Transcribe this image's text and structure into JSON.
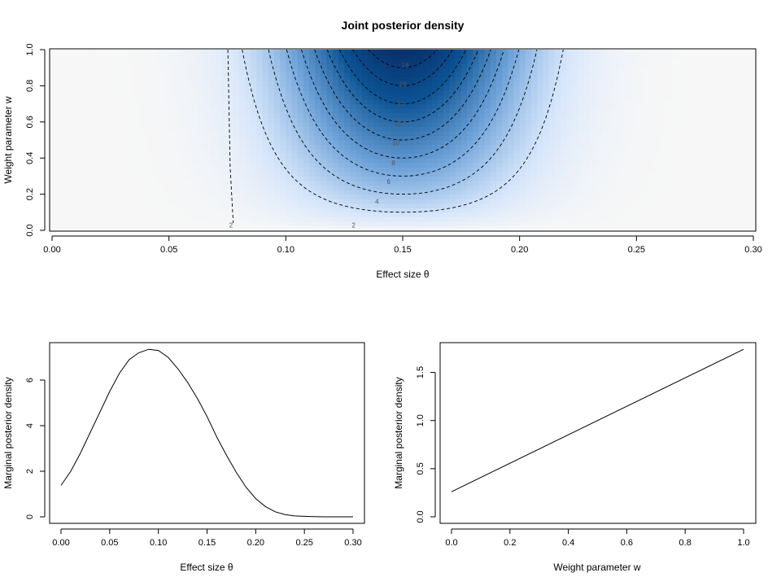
{
  "chart_data": [
    {
      "type": "heatmap",
      "title": "Joint posterior density",
      "xlabel": "Effect size θ",
      "ylabel": "Weight parameter w",
      "xlim": [
        0,
        0.3
      ],
      "ylim": [
        0,
        1
      ],
      "x_ticks": [
        "0.00",
        "0.05",
        "0.10",
        "0.15",
        "0.20",
        "0.25",
        "0.30"
      ],
      "y_ticks": [
        "0.0",
        "0.2",
        "0.4",
        "0.6",
        "0.8",
        "1.0"
      ],
      "colormap": [
        "#f7f7f7",
        "#d6e6fb",
        "#6fa3d9",
        "#0b5394",
        "#08306b"
      ],
      "contour_levels": [
        2,
        4,
        6,
        8,
        10,
        12,
        14,
        16,
        18
      ],
      "contour_labels": [
        {
          "text": "2",
          "x": 0.0765,
          "y": 0.03
        },
        {
          "text": "2",
          "x": 0.129,
          "y": 0.03
        },
        {
          "text": "4",
          "x": 0.139,
          "y": 0.16
        },
        {
          "text": "6",
          "x": 0.144,
          "y": 0.27
        },
        {
          "text": "8",
          "x": 0.146,
          "y": 0.375
        },
        {
          "text": "10",
          "x": 0.147,
          "y": 0.485
        },
        {
          "text": "12",
          "x": 0.148,
          "y": 0.59
        },
        {
          "text": "14",
          "x": 0.149,
          "y": 0.7
        },
        {
          "text": "16",
          "x": 0.15,
          "y": 0.81
        },
        {
          "text": "18",
          "x": 0.151,
          "y": 0.915
        }
      ],
      "density_model": {
        "mean": 0.15,
        "sd": 0.032,
        "scale": 20
      },
      "grid": false
    },
    {
      "type": "line",
      "title": "",
      "xlabel": "Effect size θ",
      "ylabel": "Marginal posterior density",
      "xlim": [
        0,
        0.3
      ],
      "ylim": [
        0,
        7.5
      ],
      "x_ticks": [
        "0.00",
        "0.05",
        "0.10",
        "0.15",
        "0.20",
        "0.25",
        "0.30"
      ],
      "y_ticks": [
        "0",
        "2",
        "4",
        "6"
      ],
      "series": [
        {
          "x": [
            0.0,
            0.01,
            0.02,
            0.03,
            0.04,
            0.05,
            0.06,
            0.07,
            0.08,
            0.09,
            0.1,
            0.11,
            0.12,
            0.13,
            0.14,
            0.15,
            0.16,
            0.17,
            0.18,
            0.19,
            0.2,
            0.21,
            0.22,
            0.23,
            0.24,
            0.25,
            0.26,
            0.27,
            0.28,
            0.29,
            0.3
          ],
          "y": [
            1.38,
            2.0,
            2.8,
            3.7,
            4.6,
            5.5,
            6.3,
            6.9,
            7.2,
            7.35,
            7.3,
            7.0,
            6.5,
            5.9,
            5.2,
            4.4,
            3.5,
            2.7,
            1.95,
            1.3,
            0.8,
            0.45,
            0.22,
            0.1,
            0.04,
            0.02,
            0.01,
            0.0,
            0.0,
            0.0,
            0.0
          ]
        }
      ],
      "grid": false
    },
    {
      "type": "line",
      "title": "",
      "xlabel": "Weight parameter w",
      "ylabel": "Marginal posterior density",
      "xlim": [
        0,
        1
      ],
      "ylim": [
        0,
        1.75
      ],
      "x_ticks": [
        "0.0",
        "0.2",
        "0.4",
        "0.6",
        "0.8",
        "1.0"
      ],
      "y_ticks": [
        "0.0",
        "0.5",
        "1.0",
        "1.5"
      ],
      "series": [
        {
          "x": [
            0.0,
            1.0
          ],
          "y": [
            0.26,
            1.74
          ]
        }
      ],
      "grid": false
    }
  ]
}
